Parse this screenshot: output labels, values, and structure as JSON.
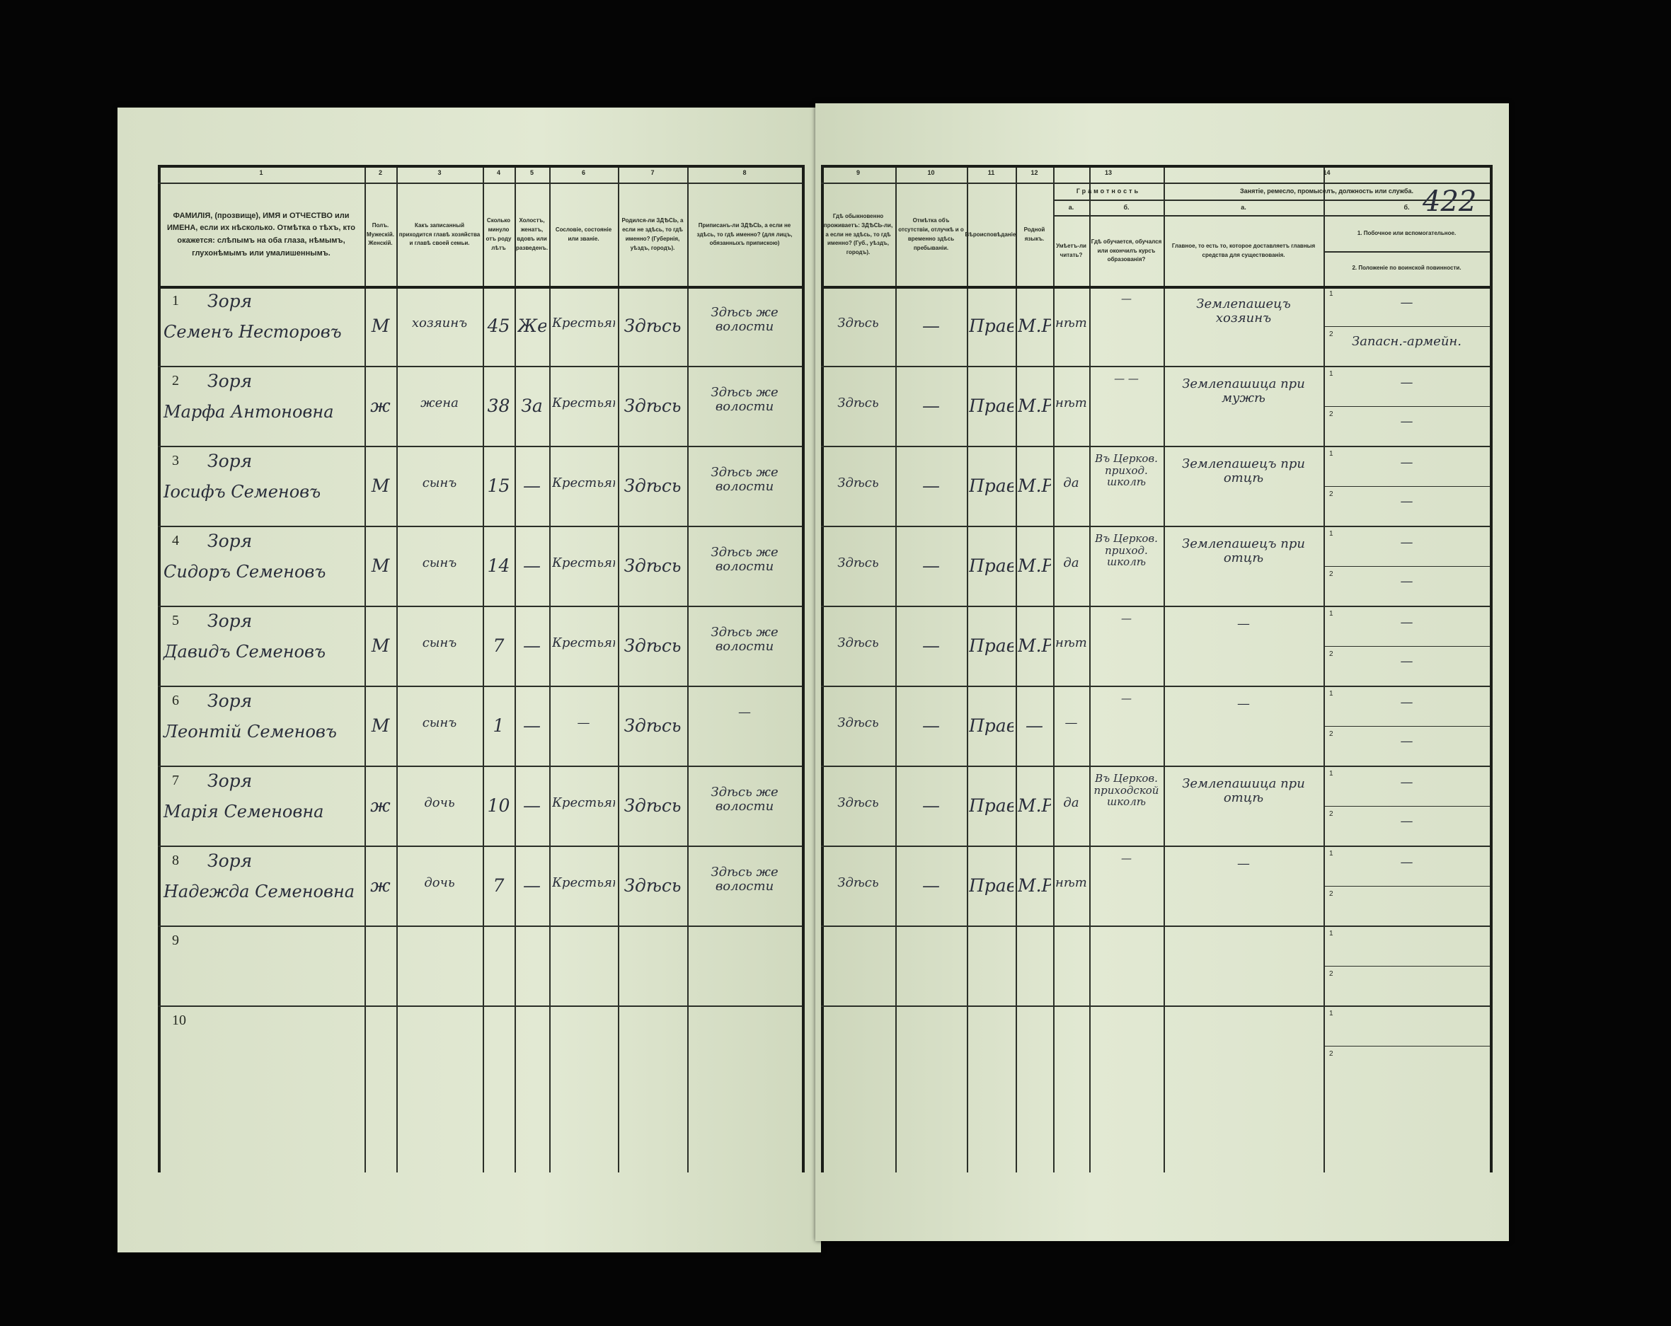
{
  "page_number": "422",
  "left_headers": [
    {
      "n": "1",
      "text": "ФАМИЛІЯ, (прозвище), ИМЯ и ОТЧЕСТВО или ИМЕНА, если их нѣсколько. Отмѣтка о тѣхъ, кто окажется: слѣпымъ на оба глаза, нѣмымъ, глухонѣмымъ или умалишеннымъ."
    },
    {
      "n": "2",
      "text": "Полъ. Мужескій. Женскій."
    },
    {
      "n": "3",
      "text": "Какъ записанный приходится главѣ хозяйства и главѣ своей семьи."
    },
    {
      "n": "4",
      "text": "Сколько минуло отъ роду лѣтъ"
    },
    {
      "n": "5",
      "text": "Холостъ, женатъ, вдовъ или разведенъ."
    },
    {
      "n": "6",
      "text": "Сословіе, состояніе или званіе."
    },
    {
      "n": "7",
      "text": "Родился-ли ЗДѢСЬ, а если не здѣсь, то гдѣ именно? (Губернія, уѣздъ, городъ)."
    },
    {
      "n": "8",
      "text": "Приписанъ-ли ЗДѢСЬ, а если не здѣсь, то гдѣ именно? (для лицъ, обязанныхъ припискою)"
    }
  ],
  "right_headers": [
    {
      "n": "9",
      "text": "Гдѣ обыкновенно проживаетъ: ЗДѢСЬ-ли, а если не здѣсь, то гдѣ именно? (Губ., уѣздъ, городъ)."
    },
    {
      "n": "10",
      "text": "Отмѣтка объ отсутствіи, отлучкѣ и о временно здѣсь пребываніи."
    },
    {
      "n": "11",
      "text": "Вѣроисповѣданіе."
    },
    {
      "n": "12",
      "text": "Родной языкъ."
    },
    {
      "n": "13",
      "group": "Грамотность",
      "a_label": "а.",
      "a_text": "Умѣетъ-ли читать?",
      "b_label": "б.",
      "b_text": "Гдѣ обучается, обучался или окончилъ курсъ образованія?"
    },
    {
      "n": "14",
      "group": "Занятіе, ремесло, промыселъ, должность или служба.",
      "a_label": "а.",
      "a_text": "Главное, то есть то, которое доставляетъ главныя средства для существованія.",
      "b_label": "б.",
      "b_text_1": "1. Побочное или вспомогательное.",
      "b_text_2": "2. Положеніе по воинской повинности."
    }
  ],
  "rows": [
    {
      "num": "1",
      "surname": "Зоря",
      "name": "Семенъ Несторовъ",
      "sex": "М",
      "relation": "хозяинъ",
      "age": "45",
      "marital": "Же",
      "estate": "Крестьян.",
      "born": "Здѣсь",
      "registered": "Здѣсь же волости",
      "lives": "Здѣсь",
      "absence": "—",
      "religion": "Право",
      "language": "М.Р.",
      "literate": "нѣтъ",
      "school": "—",
      "occupation": "Землепашецъ хозяинъ",
      "side1": "—",
      "side2": "Запасн.-армейн."
    },
    {
      "num": "2",
      "surname": "Зоря",
      "name": "Марфа Антоновна",
      "sex": "ж",
      "relation": "жена",
      "age": "38",
      "marital": "За",
      "estate": "Крестьян.",
      "born": "Здѣсь",
      "registered": "Здѣсь же волости",
      "lives": "Здѣсь",
      "absence": "—",
      "religion": "Право",
      "language": "М.Р.",
      "literate": "нѣтъ",
      "school": "— —",
      "occupation": "Землепашица при мужѣ",
      "side1": "—",
      "side2": "—"
    },
    {
      "num": "3",
      "surname": "Зоря",
      "name": "Іосифъ Семеновъ",
      "sex": "М",
      "relation": "сынъ",
      "age": "15",
      "marital": "—",
      "estate": "Крестьян.",
      "born": "Здѣсь",
      "registered": "Здѣсь же волости",
      "lives": "Здѣсь",
      "absence": "—",
      "religion": "Право",
      "language": "М.Р.",
      "literate": "да",
      "school": "Въ Церков. приход. школѣ",
      "occupation": "Землепашецъ при отцѣ",
      "side1": "—",
      "side2": "—"
    },
    {
      "num": "4",
      "surname": "Зоря",
      "name": "Сидоръ Семеновъ",
      "sex": "М",
      "relation": "сынъ",
      "age": "14",
      "marital": "—",
      "estate": "Крестьян.",
      "born": "Здѣсь",
      "registered": "Здѣсь же волости",
      "lives": "Здѣсь",
      "absence": "—",
      "religion": "Право",
      "language": "М.Р.",
      "literate": "да",
      "school": "Въ Церков. приход. школѣ",
      "occupation": "Землепашецъ при отцѣ",
      "side1": "—",
      "side2": "—"
    },
    {
      "num": "5",
      "surname": "Зоря",
      "name": "Давидъ Семеновъ",
      "sex": "М",
      "relation": "сынъ",
      "age": "7",
      "marital": "—",
      "estate": "Крестьян.",
      "born": "Здѣсь",
      "registered": "Здѣсь же волости",
      "lives": "Здѣсь",
      "absence": "—",
      "religion": "Право",
      "language": "М.Р.",
      "literate": "нѣтъ",
      "school": "—",
      "occupation": "—",
      "side1": "—",
      "side2": "—"
    },
    {
      "num": "6",
      "surname": "Зоря",
      "name": "Леонтій Семеновъ",
      "sex": "М",
      "relation": "сынъ",
      "age": "1",
      "marital": "—",
      "estate": "—",
      "born": "Здѣсь",
      "registered": "—",
      "lives": "Здѣсь",
      "absence": "—",
      "religion": "Прав",
      "language": "—",
      "literate": "—",
      "school": "—",
      "occupation": "—",
      "side1": "—",
      "side2": "—"
    },
    {
      "num": "7",
      "surname": "Зоря",
      "name": "Марія Семеновна",
      "sex": "ж",
      "relation": "дочь",
      "age": "10",
      "marital": "—",
      "estate": "Крестьян.",
      "born": "Здѣсь",
      "registered": "Здѣсь же волости",
      "lives": "Здѣсь",
      "absence": "—",
      "religion": "Право",
      "language": "М.Р.",
      "literate": "да",
      "school": "Въ Церков. приходской школѣ",
      "occupation": "Землепашица при отцѣ",
      "side1": "—",
      "side2": "—"
    },
    {
      "num": "8",
      "surname": "Зоря",
      "name": "Надежда Семеновна",
      "sex": "ж",
      "relation": "дочь",
      "age": "7",
      "marital": "—",
      "estate": "Крестьян.",
      "born": "Здѣсь",
      "registered": "Здѣсь же волости",
      "lives": "Здѣсь",
      "absence": "—",
      "religion": "Право",
      "language": "М.Р.",
      "literate": "нѣтъ",
      "school": "—",
      "occupation": "—",
      "side1": "—",
      "side2": ""
    },
    {
      "num": "9"
    },
    {
      "num": "10"
    }
  ]
}
